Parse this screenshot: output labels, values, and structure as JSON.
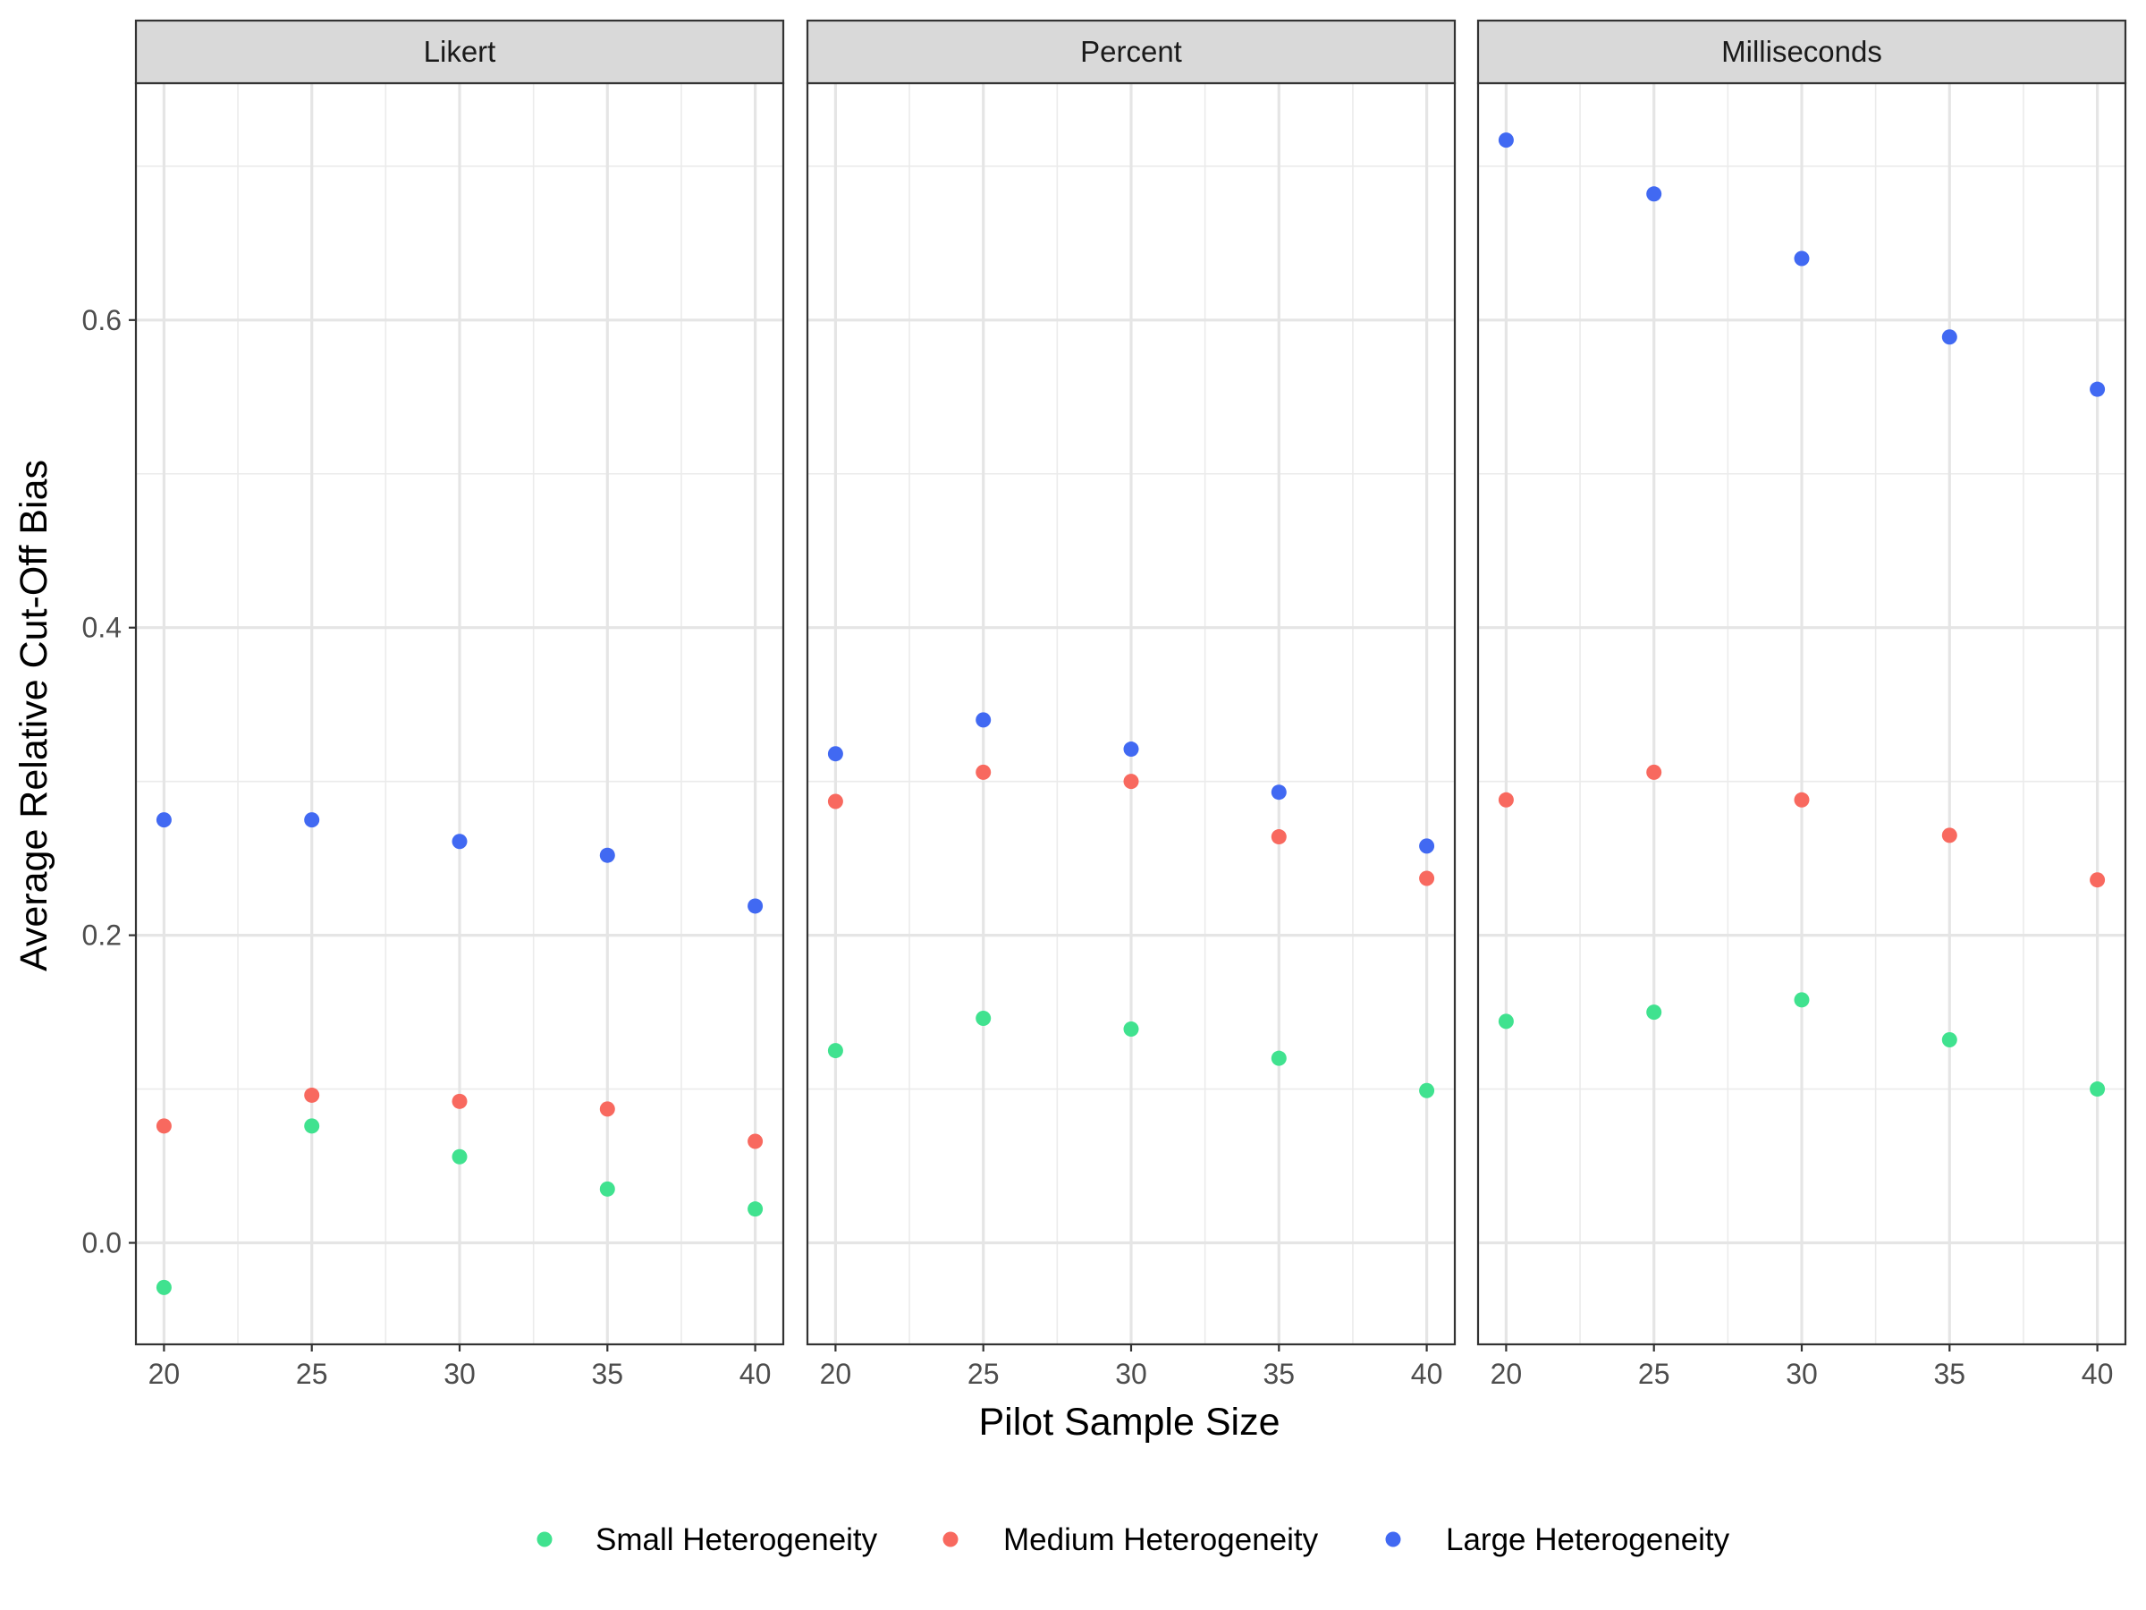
{
  "chart_data": {
    "type": "scatter",
    "xlabel": "Pilot Sample Size",
    "ylabel": "Average Relative Cut-Off Bias",
    "x": [
      20,
      25,
      30,
      35,
      40
    ],
    "x_ticks": [
      20,
      25,
      30,
      35,
      40
    ],
    "x_tick_labels": [
      "20",
      "25",
      "30",
      "35",
      "40"
    ],
    "xlim": [
      19.05,
      40.95
    ],
    "y_ticks": [
      0.0,
      0.2,
      0.4,
      0.6
    ],
    "y_tick_labels": [
      "0.0",
      "0.2",
      "0.4",
      "0.6"
    ],
    "ylim": [
      -0.066,
      0.754
    ],
    "grid": true,
    "legend_position": "bottom",
    "facets": [
      {
        "label": "Likert",
        "series": [
          {
            "name": "Small Heterogeneity",
            "values": [
              -0.029,
              0.076,
              0.056,
              0.035,
              0.022
            ]
          },
          {
            "name": "Medium Heterogeneity",
            "values": [
              0.076,
              0.096,
              0.092,
              0.087,
              0.066
            ]
          },
          {
            "name": "Large Heterogeneity",
            "values": [
              0.275,
              0.275,
              0.261,
              0.252,
              0.219
            ]
          }
        ]
      },
      {
        "label": "Percent",
        "series": [
          {
            "name": "Small Heterogeneity",
            "values": [
              0.125,
              0.146,
              0.139,
              0.12,
              0.099
            ]
          },
          {
            "name": "Medium Heterogeneity",
            "values": [
              0.287,
              0.306,
              0.3,
              0.264,
              0.237
            ]
          },
          {
            "name": "Large Heterogeneity",
            "values": [
              0.318,
              0.34,
              0.321,
              0.293,
              0.258
            ]
          }
        ]
      },
      {
        "label": "Milliseconds",
        "series": [
          {
            "name": "Small Heterogeneity",
            "values": [
              0.144,
              0.15,
              0.158,
              0.132,
              0.1
            ]
          },
          {
            "name": "Medium Heterogeneity",
            "values": [
              0.288,
              0.306,
              0.288,
              0.265,
              0.236
            ]
          },
          {
            "name": "Large Heterogeneity",
            "values": [
              0.717,
              0.682,
              0.64,
              0.589,
              0.555
            ]
          }
        ]
      }
    ],
    "legend": [
      {
        "name": "Small Heterogeneity",
        "color": "#40E28F"
      },
      {
        "name": "Medium Heterogeneity",
        "color": "#F8695F"
      },
      {
        "name": "Large Heterogeneity",
        "color": "#4169F2"
      }
    ],
    "colors": {
      "Small Heterogeneity": "#40E28F",
      "Medium Heterogeneity": "#F8695F",
      "Large Heterogeneity": "#4169F2"
    }
  }
}
